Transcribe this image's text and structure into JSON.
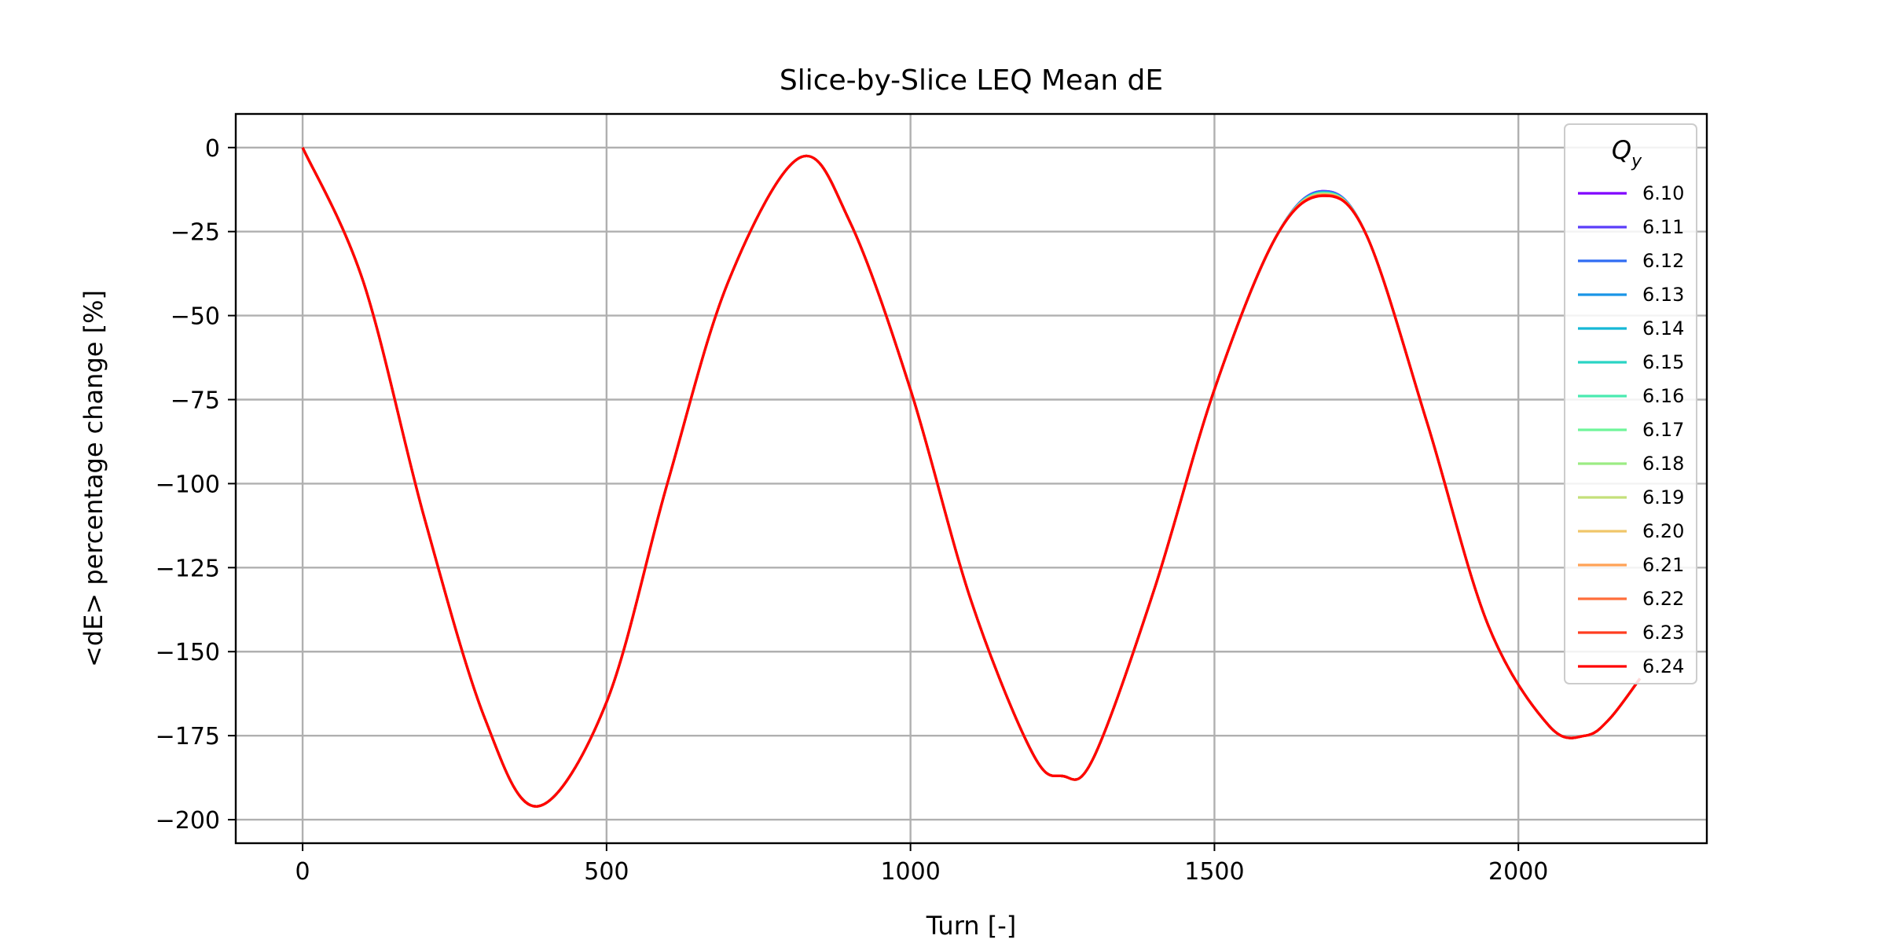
{
  "chart_data": {
    "type": "line",
    "title": "Slice-by-Slice LEQ Mean dE",
    "xlabel": "Turn [-]",
    "ylabel": "<dE> percentage change [%]",
    "xlim": [
      -110,
      2310
    ],
    "ylim": [
      -207,
      10
    ],
    "xticks": [
      0,
      500,
      1000,
      1500,
      2000
    ],
    "yticks": [
      0,
      -25,
      -50,
      -75,
      -100,
      -125,
      -150,
      -175,
      -200
    ],
    "xtick_labels": [
      "0",
      "500",
      "1000",
      "1500",
      "2000"
    ],
    "ytick_labels": [
      "0",
      "−25",
      "−50",
      "−75",
      "−100",
      "−125",
      "−150",
      "−175",
      "−200"
    ],
    "grid": true,
    "legend": {
      "title": "Q_y",
      "title_main": "Q",
      "title_sub": "y",
      "placement": "upper-right"
    },
    "x": [
      0,
      100,
      200,
      300,
      387,
      500,
      600,
      700,
      818,
      900,
      1000,
      1100,
      1200,
      1250,
      1300,
      1400,
      1500,
      1600,
      1677,
      1750,
      1850,
      1950,
      2050,
      2110,
      2150,
      2200
    ],
    "series": [
      {
        "name": "6.10",
        "color": "#8000ff",
        "values": [
          0,
          -40,
          -110,
          -170,
          -196,
          -165,
          -100,
          -40,
          -3,
          -22,
          -72,
          -135,
          -180,
          -187,
          -182,
          -132,
          -72,
          -27,
          -13,
          -26,
          -82,
          -142,
          -172,
          -175,
          -170,
          -158
        ]
      },
      {
        "name": "6.11",
        "color": "#5a3df9",
        "values": [
          0,
          -40,
          -110,
          -170,
          -196,
          -165,
          -100,
          -40,
          -3,
          -22,
          -72,
          -135,
          -180,
          -187,
          -182,
          -132,
          -72,
          -27,
          -13,
          -26,
          -82,
          -142,
          -172,
          -175,
          -170,
          -158
        ]
      },
      {
        "name": "6.12",
        "color": "#2f6cf3",
        "values": [
          0,
          -40,
          -110,
          -170,
          -196,
          -165,
          -100,
          -40,
          -3,
          -22,
          -72,
          -135,
          -180,
          -187,
          -182,
          -132,
          -72,
          -27,
          -13.2,
          -26,
          -82,
          -142,
          -172,
          -175,
          -170,
          -158
        ]
      },
      {
        "name": "6.13",
        "color": "#1995e6",
        "values": [
          0,
          -40,
          -110,
          -170,
          -196,
          -165,
          -100,
          -40,
          -3,
          -22,
          -72,
          -135,
          -180,
          -187,
          -182,
          -132,
          -72,
          -27,
          -13.3,
          -26,
          -82,
          -142,
          -172,
          -175,
          -170,
          -158
        ]
      },
      {
        "name": "6.14",
        "color": "#15b8d6",
        "values": [
          0,
          -40,
          -110,
          -170,
          -196,
          -165,
          -100,
          -40,
          -3,
          -22,
          -72,
          -135,
          -180,
          -187,
          -182,
          -132,
          -72,
          -27,
          -13.4,
          -26,
          -82,
          -142,
          -172,
          -175,
          -170,
          -158
        ]
      },
      {
        "name": "6.15",
        "color": "#2ad4c4",
        "values": [
          0,
          -40,
          -110,
          -170,
          -196,
          -165,
          -100,
          -40,
          -3,
          -22,
          -72,
          -135,
          -180,
          -187,
          -182,
          -132,
          -72,
          -27,
          -13.5,
          -26,
          -82,
          -142,
          -172,
          -175,
          -170,
          -158
        ]
      },
      {
        "name": "6.16",
        "color": "#4aeab0",
        "values": [
          0,
          -40,
          -110,
          -170,
          -196,
          -165,
          -100,
          -40,
          -3,
          -22,
          -72,
          -135,
          -180,
          -187,
          -182,
          -132,
          -72,
          -27,
          -13.6,
          -26,
          -82,
          -142,
          -172,
          -175,
          -170,
          -158
        ]
      },
      {
        "name": "6.17",
        "color": "#6ff59a",
        "values": [
          0,
          -40,
          -110,
          -170,
          -196,
          -165,
          -100,
          -40,
          -3,
          -22,
          -72,
          -135,
          -180,
          -187,
          -182,
          -132,
          -72,
          -27,
          -13.7,
          -26,
          -82,
          -142,
          -172,
          -175,
          -170,
          -158
        ]
      },
      {
        "name": "6.18",
        "color": "#9cec84",
        "values": [
          0,
          -40,
          -110,
          -170,
          -196,
          -165,
          -100,
          -40,
          -3,
          -22,
          -72,
          -135,
          -180,
          -187,
          -182,
          -132,
          -72,
          -27,
          -13.8,
          -26,
          -82,
          -142,
          -172,
          -175,
          -170,
          -158
        ]
      },
      {
        "name": "6.19",
        "color": "#c4e07a",
        "values": [
          0,
          -40,
          -110,
          -170,
          -196,
          -165,
          -100,
          -40,
          -3,
          -22,
          -72,
          -135,
          -180,
          -187,
          -182,
          -132,
          -72,
          -27,
          -13.9,
          -26,
          -82,
          -142,
          -172,
          -175,
          -170,
          -158
        ]
      },
      {
        "name": "6.20",
        "color": "#f0c66a",
        "values": [
          0,
          -40,
          -110,
          -170,
          -196,
          -165,
          -100,
          -40,
          -3,
          -22,
          -72,
          -135,
          -180,
          -187,
          -182,
          -132,
          -72,
          -27,
          -14.0,
          -26,
          -82,
          -142,
          -172,
          -175,
          -170,
          -158
        ]
      },
      {
        "name": "6.21",
        "color": "#ffa256",
        "values": [
          0,
          -40,
          -110,
          -170,
          -196,
          -165,
          -100,
          -40,
          -3,
          -22,
          -72,
          -135,
          -180,
          -187,
          -182,
          -132,
          -72,
          -27,
          -14.1,
          -26,
          -82,
          -142,
          -172,
          -175,
          -170,
          -158
        ]
      },
      {
        "name": "6.22",
        "color": "#ff6d3a",
        "values": [
          0,
          -40,
          -110,
          -170,
          -196,
          -165,
          -100,
          -40,
          -3,
          -22,
          -72,
          -135,
          -180,
          -187,
          -182,
          -132,
          -72,
          -27,
          -14.2,
          -26,
          -82,
          -142,
          -172,
          -175,
          -170,
          -158
        ]
      },
      {
        "name": "6.23",
        "color": "#ff3d20",
        "values": [
          0,
          -40,
          -110,
          -170,
          -196,
          -165,
          -100,
          -40,
          -3,
          -22,
          -72,
          -135,
          -180,
          -187,
          -182,
          -132,
          -72,
          -27,
          -14.3,
          -26,
          -82,
          -142,
          -172,
          -175,
          -170,
          -158
        ]
      },
      {
        "name": "6.24",
        "color": "#ff0000",
        "values": [
          0,
          -40,
          -110,
          -170,
          -196,
          -165,
          -100,
          -40,
          -3,
          -22,
          -72,
          -135,
          -180,
          -187,
          -182,
          -132,
          -72,
          -27,
          -14.4,
          -26,
          -82,
          -142,
          -172,
          -175,
          -170,
          -158
        ]
      }
    ]
  }
}
